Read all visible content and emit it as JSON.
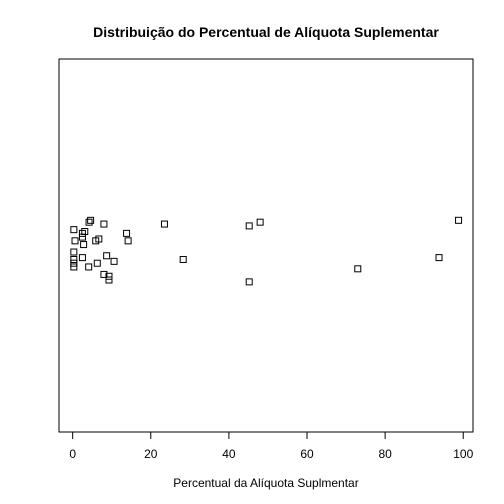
{
  "chart_data": {
    "type": "scatter",
    "title": "Distribuição do Percentual de Alíquota Suplementar",
    "xlabel": "Percentual da Alíquota Suplmentar",
    "ylabel": "",
    "xlim": [
      -3.5,
      102.5
    ],
    "ylim": [
      -1,
      1
    ],
    "xticks": [
      0,
      20,
      40,
      60,
      80,
      100
    ],
    "xtick_labels": [
      "0",
      "20",
      "40",
      "60",
      "80",
      "100"
    ],
    "jitter_plot": true,
    "points": [
      {
        "x": 0.3,
        "y": 0.085
      },
      {
        "x": 0.3,
        "y": -0.035
      },
      {
        "x": 0.3,
        "y": -0.075
      },
      {
        "x": 0.3,
        "y": -0.095
      },
      {
        "x": 0.3,
        "y": -0.115
      },
      {
        "x": 0.6,
        "y": 0.025
      },
      {
        "x": 2.5,
        "y": 0.065
      },
      {
        "x": 2.5,
        "y": 0.045
      },
      {
        "x": 2.8,
        "y": 0.005
      },
      {
        "x": 3.1,
        "y": 0.075
      },
      {
        "x": 2.5,
        "y": -0.065
      },
      {
        "x": 4.1,
        "y": -0.115
      },
      {
        "x": 4.2,
        "y": 0.125
      },
      {
        "x": 4.6,
        "y": 0.135
      },
      {
        "x": 5.9,
        "y": 0.025
      },
      {
        "x": 6.3,
        "y": -0.095
      },
      {
        "x": 6.7,
        "y": 0.035
      },
      {
        "x": 8.0,
        "y": 0.115
      },
      {
        "x": 8.0,
        "y": -0.155
      },
      {
        "x": 8.7,
        "y": -0.055
      },
      {
        "x": 9.3,
        "y": -0.165
      },
      {
        "x": 9.3,
        "y": -0.185
      },
      {
        "x": 10.6,
        "y": -0.085
      },
      {
        "x": 13.8,
        "y": 0.065
      },
      {
        "x": 14.2,
        "y": 0.025
      },
      {
        "x": 23.5,
        "y": 0.115
      },
      {
        "x": 28.3,
        "y": -0.075
      },
      {
        "x": 45.2,
        "y": 0.105
      },
      {
        "x": 45.2,
        "y": -0.195
      },
      {
        "x": 48.0,
        "y": 0.125
      },
      {
        "x": 73.0,
        "y": -0.125
      },
      {
        "x": 93.8,
        "y": -0.065
      },
      {
        "x": 98.8,
        "y": 0.135
      }
    ]
  }
}
